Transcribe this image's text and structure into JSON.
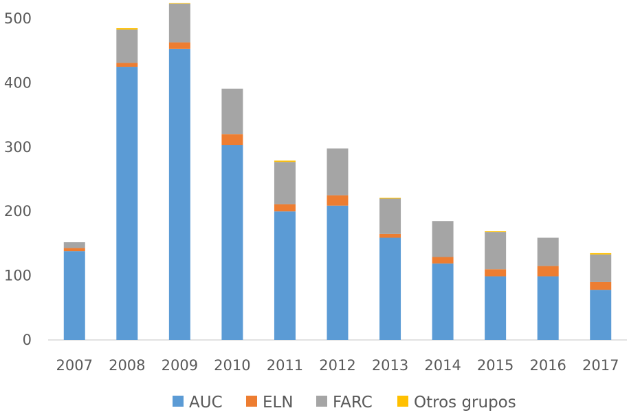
{
  "chart_data": {
    "type": "bar",
    "stacked": true,
    "title": "",
    "xlabel": "",
    "ylabel": "",
    "categories": [
      "2007",
      "2008",
      "2009",
      "2010",
      "2011",
      "2012",
      "2013",
      "2014",
      "2015",
      "2016",
      "2017"
    ],
    "series": [
      {
        "name": "AUC",
        "color": "#5B9BD5",
        "values": [
          138,
          425,
          453,
          303,
          200,
          209,
          159,
          119,
          99,
          99,
          78
        ]
      },
      {
        "name": "ELN",
        "color": "#ED7D31",
        "values": [
          5,
          6,
          10,
          17,
          11,
          16,
          6,
          10,
          11,
          16,
          12
        ]
      },
      {
        "name": "FARC",
        "color": "#A5A5A5",
        "values": [
          9,
          52,
          60,
          71,
          66,
          73,
          55,
          56,
          58,
          44,
          43
        ]
      },
      {
        "name": "Otros grupos",
        "color": "#FFC000",
        "values": [
          0,
          2,
          1,
          0,
          2,
          0,
          1,
          0,
          1,
          0,
          2
        ]
      }
    ],
    "ylim": [
      0,
      500
    ],
    "yticks": [
      0,
      100,
      200,
      300,
      400,
      500
    ],
    "grid": false,
    "legend_position": "bottom"
  }
}
